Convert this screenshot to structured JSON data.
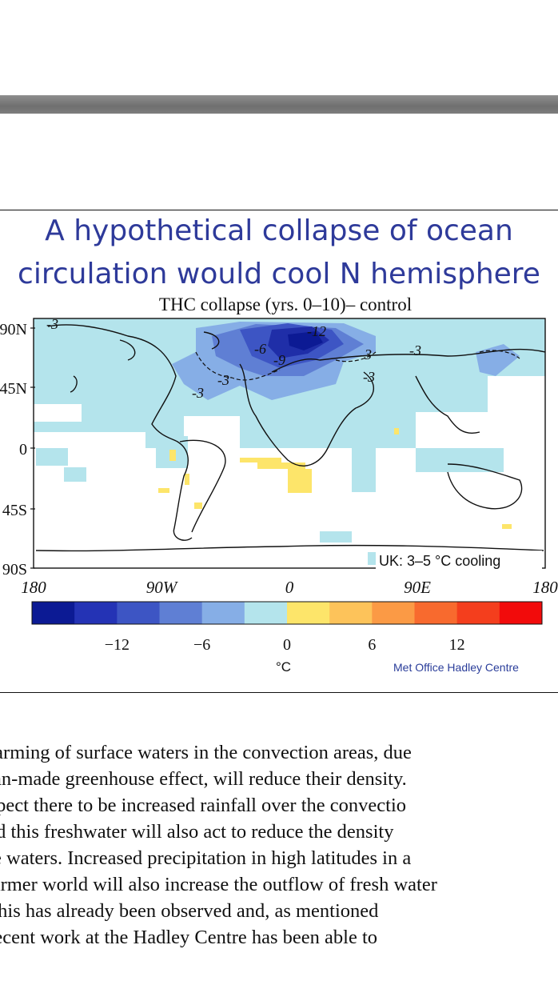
{
  "figure": {
    "title_line1": "A hypothetical collapse of ocean",
    "title_line2": "circulation would cool N hemisphere",
    "credit": "Met Office Hadley Centre"
  },
  "chart_data": {
    "type": "heatmap",
    "title": "THC collapse (yrs. 0–10)– control",
    "annotation": "UK: 3–5 °C cooling",
    "x_tick_labels": [
      "180",
      "90W",
      "0",
      "90E",
      "180"
    ],
    "y_tick_labels": [
      "90N",
      "45N",
      "0",
      "45S",
      "90S"
    ],
    "contour_labels": [
      "-3",
      "-12",
      "-6",
      "-9",
      "-3",
      "-3",
      "-3",
      "-3",
      "-3"
    ],
    "colorbar": {
      "colors": [
        "#0c1a94",
        "#2433b5",
        "#3d55c4",
        "#5f7fd4",
        "#86aee6",
        "#b4e4ec",
        "#fde56a",
        "#fdc35a",
        "#fb9a45",
        "#f86a2e",
        "#f43e1d",
        "#f20b0b"
      ],
      "tick_labels": [
        "-12",
        "-6",
        "0",
        "6",
        "12"
      ],
      "unit": "°C"
    }
  },
  "body": {
    "lines": [
      "Warming of surface waters in the convection areas, due",
      "man-made greenhouse effect, will reduce their density.",
      "expect there to be increased rainfall over the convectio",
      "and this freshwater will also act to reduce the density",
      "the waters. Increased precipitation in high latitudes in a",
      "warmer world will also increase the outflow of fresh water",
      "– this has already been observed and, as mentioned",
      ", recent work at the Hadley Centre has been able to"
    ]
  }
}
